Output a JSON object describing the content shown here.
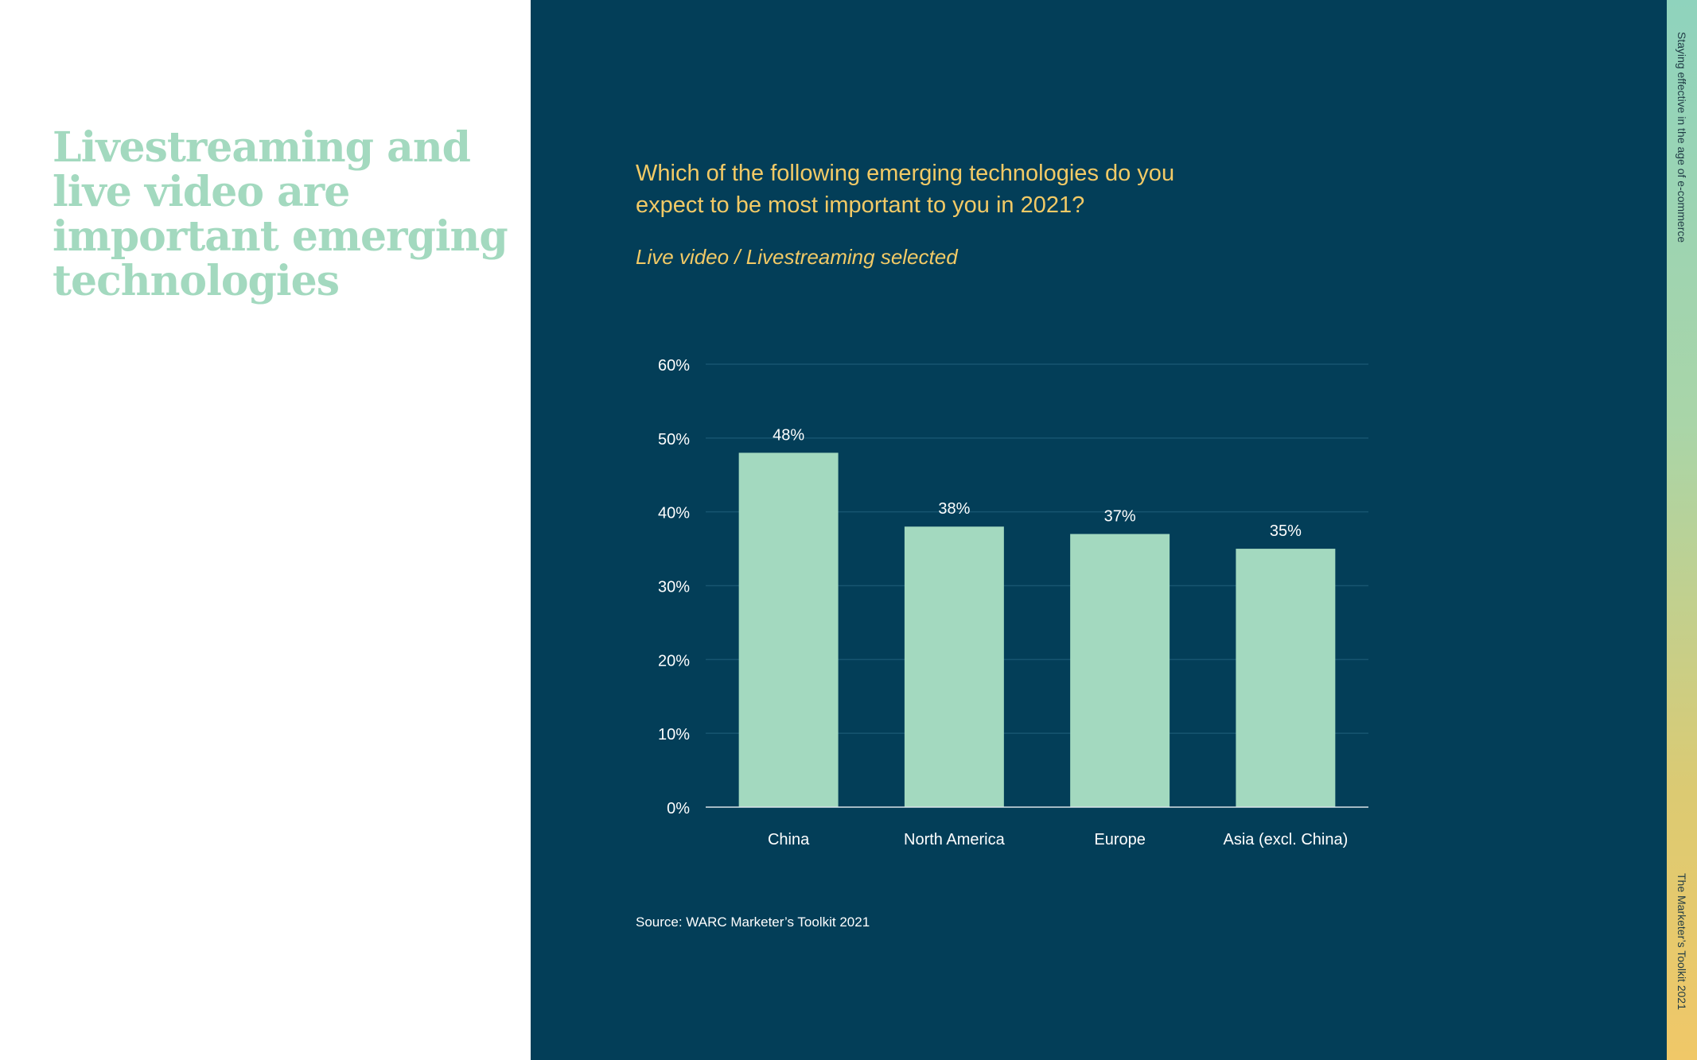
{
  "headline": "Livestreaming and live video are important emerging technologies",
  "question_lines": [
    "Which of the following emerging technologies do you",
    "expect to be most important to you in 2021?"
  ],
  "subtitle": "Live video / Livestreaming selected",
  "source": "Source: WARC Marketer’s Toolkit 2021",
  "side_labels": {
    "top": "Staying effective in the age of e-commerce",
    "bottom": "The Marketer’s Toolkit 2021"
  },
  "colors": {
    "panel": "#033e58",
    "bar": "#a3d9bf",
    "accent": "#f2ca66",
    "gridline": "#175570",
    "axis": "#d9e4e8",
    "text": "#ffffff"
  },
  "chart_data": {
    "type": "bar",
    "categories": [
      "China",
      "North America",
      "Europe",
      "Asia (excl. China)"
    ],
    "values": [
      48,
      38,
      37,
      35
    ],
    "value_labels": [
      "48%",
      "38%",
      "37%",
      "35%"
    ],
    "y_ticks": [
      0,
      10,
      20,
      30,
      40,
      50,
      60
    ],
    "y_tick_labels": [
      "0%",
      "10%",
      "20%",
      "30%",
      "40%",
      "50%",
      "60%"
    ],
    "ylim": [
      0,
      60
    ],
    "grid": true,
    "legend": "none"
  }
}
